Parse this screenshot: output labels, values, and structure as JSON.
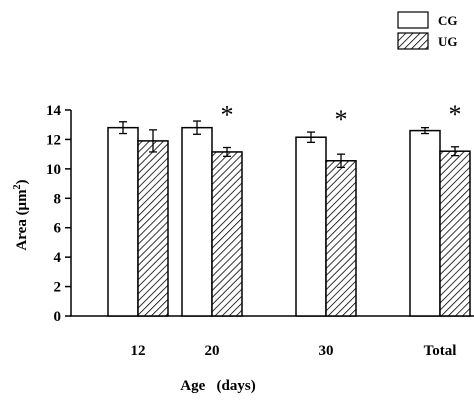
{
  "chart_data": {
    "type": "bar",
    "title": "",
    "xlabel": "Age   (days)",
    "ylabel_main": "Area  (μm",
    "ylabel_sup": "2",
    "ylabel_close": ")",
    "ylim": [
      0,
      14
    ],
    "yticks": [
      0,
      2,
      4,
      6,
      8,
      10,
      12,
      14
    ],
    "categories": [
      "12",
      "20",
      "30",
      "Total"
    ],
    "series": [
      {
        "name": "CG",
        "fill": "white",
        "values": [
          12.8,
          12.8,
          12.15,
          12.6
        ],
        "errors": [
          0.4,
          0.45,
          0.35,
          0.2
        ]
      },
      {
        "name": "UG",
        "fill": "hatch",
        "values": [
          11.9,
          11.15,
          10.55,
          11.2
        ],
        "errors": [
          0.75,
          0.3,
          0.45,
          0.3
        ]
      }
    ],
    "significance": [
      "",
      "*",
      "*",
      "*"
    ],
    "legend_position": "top-right",
    "grid": false
  }
}
